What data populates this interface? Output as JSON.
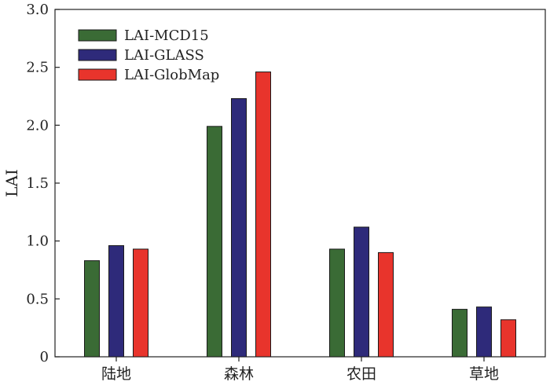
{
  "chart_data": {
    "type": "bar",
    "title": "",
    "xlabel": "",
    "ylabel": "LAI",
    "categories": [
      "陆地",
      "森林",
      "农田",
      "草地"
    ],
    "ylim": [
      0,
      3.0
    ],
    "yticks": [
      "0",
      "0.5",
      "1.0",
      "1.5",
      "2.0",
      "2.5",
      "3.0"
    ],
    "grid": false,
    "legend_position": "top-left",
    "series": [
      {
        "name": "LAI-MCD15",
        "color": "#3a6b35",
        "values": [
          0.83,
          1.99,
          0.93,
          0.41
        ]
      },
      {
        "name": "LAI-GLASS",
        "color": "#2e2a7a",
        "values": [
          0.96,
          2.23,
          1.12,
          0.43
        ]
      },
      {
        "name": "LAI-GlobMap",
        "color": "#e8342c",
        "values": [
          0.93,
          2.46,
          0.9,
          0.32
        ]
      }
    ]
  }
}
